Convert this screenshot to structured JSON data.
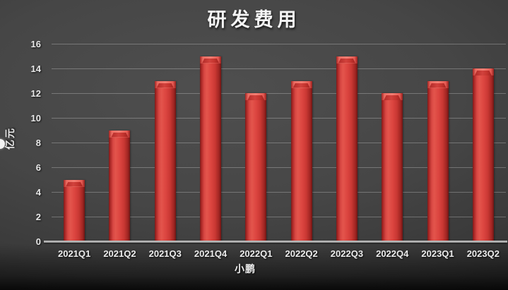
{
  "title": "研发费用",
  "chart_data": {
    "type": "bar",
    "title": "研发费用",
    "categories": [
      "2021Q1",
      "2021Q2",
      "2021Q3",
      "2021Q4",
      "2022Q1",
      "2022Q2",
      "2022Q3",
      "2022Q4",
      "2023Q1",
      "2023Q2"
    ],
    "values": [
      5,
      9,
      13,
      15,
      12,
      13,
      15,
      12,
      13,
      14
    ],
    "xlabel": "小鹏",
    "ylabel": "亿元",
    "ylim": [
      0,
      16
    ],
    "yticks": [
      0,
      2,
      4,
      6,
      8,
      10,
      12,
      14,
      16
    ],
    "grid": true,
    "legend": "none",
    "bar_color": "#d5403c",
    "background_color": "#464646",
    "text_color": "#ececec"
  }
}
